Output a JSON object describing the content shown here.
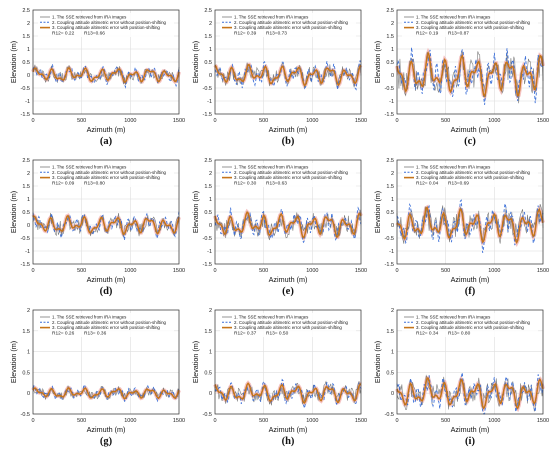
{
  "panels_axes": {
    "ylabel": "Elevation (m)",
    "xlabel": "Azimuth (m)",
    "x_ticks": [
      "0",
      "500",
      "1000",
      "1500"
    ],
    "y_ticks": [
      "-1.5",
      "-1",
      "-0.5",
      "0",
      "0.5",
      "1",
      "1.5",
      "2",
      "2.5"
    ]
  },
  "legend": {
    "entries": [
      "1. The SSE retrieved from IRA images",
      "2. Coupling attitude altimetric error without position-shifting",
      "3. Coupling attitude altimetric error with position-shifting"
    ]
  },
  "colors": {
    "sse": "#7a7a7a",
    "without_shift": "#3b6fd8",
    "with_shift": "#c5741a",
    "with_shift_shade": "#f2b4b4"
  },
  "chart_data": [
    {
      "type": "line",
      "label": "(a)",
      "r12": "R12= 0.22",
      "r13": "R13=0.66",
      "xlim": [
        0,
        1500
      ],
      "ylim": [
        -1.5,
        2.5
      ],
      "amp": 0.28,
      "phase": 0.3
    },
    {
      "type": "line",
      "label": "(b)",
      "r12": "R12= 0.39",
      "r13": "R13=0.73",
      "xlim": [
        0,
        1500
      ],
      "ylim": [
        -1.5,
        2.5
      ],
      "amp": 0.38,
      "phase": 1.1
    },
    {
      "type": "line",
      "label": "(c)",
      "r12": "R12= 0.19",
      "r13": "R13=0.87",
      "xlim": [
        0,
        1500
      ],
      "ylim": [
        -1.5,
        2.5
      ],
      "amp": 0.75,
      "phase": 2.0
    },
    {
      "type": "line",
      "label": "(d)",
      "r12": "R12= 0.09",
      "r13": "R13=0.80",
      "xlim": [
        0,
        1500
      ],
      "ylim": [
        -1.5,
        2.5
      ],
      "amp": 0.35,
      "phase": 0.7
    },
    {
      "type": "line",
      "label": "(e)",
      "r12": "R12= 0.30",
      "r13": "R13=0.63",
      "xlim": [
        0,
        1500
      ],
      "ylim": [
        -1.5,
        2.5
      ],
      "amp": 0.45,
      "phase": 1.6
    },
    {
      "type": "line",
      "label": "(f)",
      "r12": "R12= 0.04",
      "r13": "R13=0.69",
      "xlim": [
        0,
        1500
      ],
      "ylim": [
        -1.5,
        2.5
      ],
      "amp": 0.6,
      "phase": 2.5
    },
    {
      "type": "line",
      "label": "(g)",
      "r12": "R12= 0.26",
      "r13": "R13= 0.36",
      "xlim": [
        0,
        1500
      ],
      "ylim": [
        -0.5,
        2.0
      ],
      "amp": 0.13,
      "phase": 0.4
    },
    {
      "type": "line",
      "label": "(h)",
      "r12": "R12= 0.37",
      "r13": "R13= 0.50",
      "xlim": [
        0,
        1500
      ],
      "ylim": [
        -0.5,
        2.0
      ],
      "amp": 0.22,
      "phase": 1.3
    },
    {
      "type": "line",
      "label": "(i)",
      "r12": "R12= 0.34",
      "r13": "R13= 0.80",
      "xlim": [
        0,
        1500
      ],
      "ylim": [
        -0.5,
        2.0
      ],
      "amp": 0.33,
      "phase": 2.2
    }
  ]
}
